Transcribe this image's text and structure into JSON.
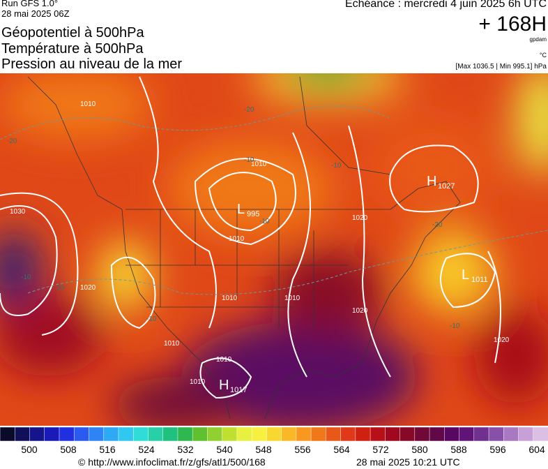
{
  "header": {
    "run": "Run GFS 1.0°",
    "run_date": "28 mai 2025 06Z",
    "titles": [
      "Géopotentiel à 500hPa",
      "Température à 500hPa",
      "Pression au niveau de la mer"
    ],
    "forecast": "Echéance : mercredi 4 juin 2025 6h UTC",
    "lead": "+ 168H",
    "unit_geo": "gpdam",
    "unit_temp": "°C",
    "pressure_range": "[Max 1036.5 | Min 995.1] hPa"
  },
  "map": {
    "pressure_centers": [
      {
        "letter": "H",
        "value": "1027"
      },
      {
        "letter": "L",
        "value": "995"
      },
      {
        "letter": "L",
        "value": "1011"
      },
      {
        "letter": "H",
        "value": "1017"
      }
    ],
    "contour_labels": [
      "1010",
      "1020",
      "1030",
      "1020",
      "1010",
      "1010",
      "1020",
      "1010",
      "1020",
      "1010",
      "1010",
      "1010",
      "1010"
    ],
    "temp_labels": [
      "-20",
      "-20",
      "-10",
      "-10",
      "-10",
      "-10",
      "-10",
      "-10",
      "-10",
      "-20"
    ]
  },
  "colorbar": {
    "ticks": [
      500,
      508,
      516,
      524,
      532,
      540,
      548,
      556,
      564,
      572,
      580,
      588,
      596,
      604
    ],
    "colors": [
      "#0a0a2a",
      "#10105a",
      "#14148c",
      "#1a1ab8",
      "#2030e0",
      "#2a5af0",
      "#2e84f5",
      "#2eaaf5",
      "#30c8f0",
      "#30dcd8",
      "#28d0a8",
      "#20c080",
      "#30b850",
      "#60c030",
      "#90d030",
      "#c0e030",
      "#e8f040",
      "#f8f040",
      "#f8d830",
      "#f8b828",
      "#f89820",
      "#f07818",
      "#e85818",
      "#e03818",
      "#d02010",
      "#b81018",
      "#a00820",
      "#880828",
      "#700838",
      "#600848",
      "#580860",
      "#601478",
      "#703090",
      "#8850a8",
      "#a878c0",
      "#c8a0d8",
      "#dcc0e4"
    ]
  },
  "footer": {
    "url": "© http://www.infoclimat.fr/z/gfs/atl1/500/168",
    "timestamp": "28 mai 2025 10:21 UTC"
  }
}
